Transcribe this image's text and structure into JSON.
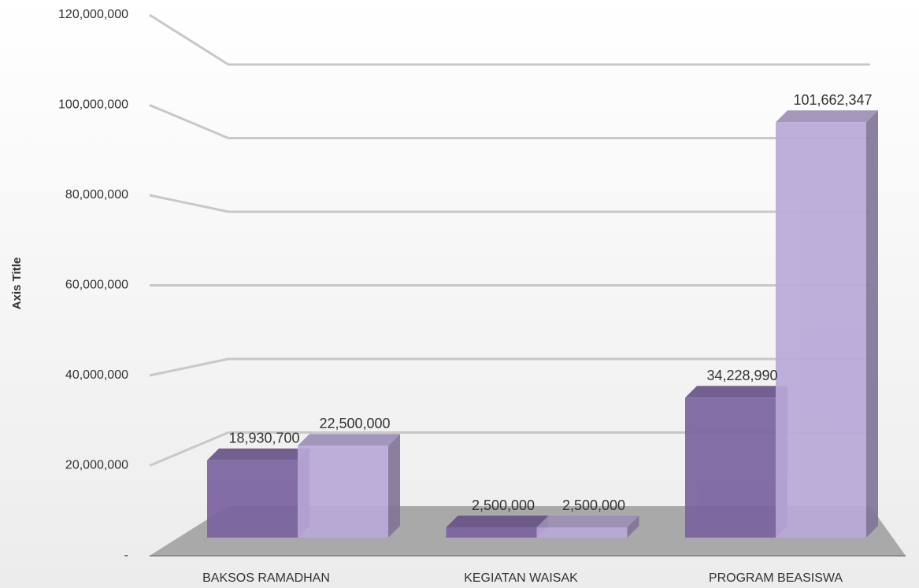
{
  "chart_data": {
    "type": "bar3d",
    "y_axis_label": "Axis Title",
    "categories": [
      "BAKSOS RAMADHAN",
      "KEGIATAN WAISAK",
      "PROGRAM BEASISWA"
    ],
    "series": [
      {
        "color": "#7b63a0",
        "values": [
          18930700,
          2500000,
          34228990
        ],
        "value_labels": [
          "18,930,700",
          "2,500,000",
          "34,228,990"
        ]
      },
      {
        "color": "#b9a8d8",
        "values": [
          22500000,
          2500000,
          101662347
        ],
        "value_labels": [
          "22,500,000",
          "2,500,000",
          "101,662,347"
        ]
      }
    ],
    "ylim": [
      0,
      120000000
    ],
    "yticks": [
      {
        "value": 0,
        "label": "-"
      },
      {
        "value": 20000000,
        "label": "20,000,000"
      },
      {
        "value": 40000000,
        "label": "40,000,000"
      },
      {
        "value": 60000000,
        "label": "60,000,000"
      },
      {
        "value": 80000000,
        "label": "80,000,000"
      },
      {
        "value": 100000000,
        "label": "100,000,000"
      },
      {
        "value": 120000000,
        "label": "120,000,000"
      }
    ],
    "grid": true
  }
}
